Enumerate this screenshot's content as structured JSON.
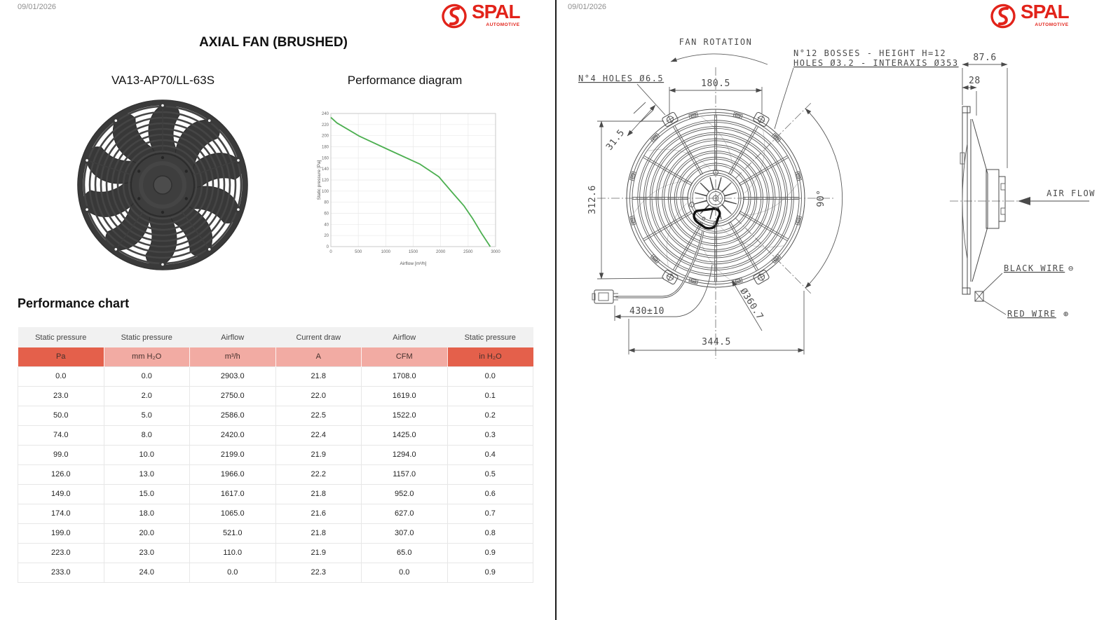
{
  "colors": {
    "accent_dark": "#e4604b",
    "accent_light": "#f2aba3",
    "brand_red": "#e2231a",
    "chart_line": "#4caf50"
  },
  "left_page": {
    "date": "09/01/2026",
    "logo": {
      "name": "SPAL",
      "tagline": "AUTOMOTIVE"
    },
    "title": "AXIAL FAN (BRUSHED)",
    "model": "VA13-AP70/LL-63S",
    "diagram_heading": "Performance diagram",
    "table_heading": "Performance chart",
    "table": {
      "headers": [
        "Static pressure",
        "Static pressure",
        "Airflow",
        "Current draw",
        "Airflow",
        "Static pressure"
      ],
      "units": [
        "Pa",
        "mm H₂O",
        "m³/h",
        "A",
        "CFM",
        "in H₂O"
      ],
      "unit_styles": [
        "dark",
        "light",
        "light",
        "light",
        "light",
        "dark"
      ],
      "rows": [
        [
          "0.0",
          "0.0",
          "2903.0",
          "21.8",
          "1708.0",
          "0.0"
        ],
        [
          "23.0",
          "2.0",
          "2750.0",
          "22.0",
          "1619.0",
          "0.1"
        ],
        [
          "50.0",
          "5.0",
          "2586.0",
          "22.5",
          "1522.0",
          "0.2"
        ],
        [
          "74.0",
          "8.0",
          "2420.0",
          "22.4",
          "1425.0",
          "0.3"
        ],
        [
          "99.0",
          "10.0",
          "2199.0",
          "21.9",
          "1294.0",
          "0.4"
        ],
        [
          "126.0",
          "13.0",
          "1966.0",
          "22.2",
          "1157.0",
          "0.5"
        ],
        [
          "149.0",
          "15.0",
          "1617.0",
          "21.8",
          "952.0",
          "0.6"
        ],
        [
          "174.0",
          "18.0",
          "1065.0",
          "21.6",
          "627.0",
          "0.7"
        ],
        [
          "199.0",
          "20.0",
          "521.0",
          "21.8",
          "307.0",
          "0.8"
        ],
        [
          "223.0",
          "23.0",
          "110.0",
          "21.9",
          "65.0",
          "0.9"
        ],
        [
          "233.0",
          "24.0",
          "0.0",
          "22.3",
          "0.0",
          "0.9"
        ]
      ]
    }
  },
  "chart_data": {
    "type": "line",
    "title": "Performance diagram",
    "xlabel": "Airflow [m³/h]",
    "ylabel": "Static pressure [Pa]",
    "xlim": [
      0,
      3000
    ],
    "ylim": [
      0,
      240
    ],
    "x_ticks": [
      0,
      500,
      1000,
      1500,
      2000,
      2500,
      3000
    ],
    "y_ticks": [
      0,
      20,
      40,
      60,
      80,
      100,
      120,
      140,
      160,
      180,
      200,
      220,
      240
    ],
    "grid": true,
    "legend": false,
    "series": [
      {
        "name": "Static pressure vs Airflow",
        "points": [
          [
            0,
            233
          ],
          [
            110,
            223
          ],
          [
            521,
            199
          ],
          [
            1065,
            174
          ],
          [
            1617,
            149
          ],
          [
            1966,
            126
          ],
          [
            2199,
            99
          ],
          [
            2420,
            74
          ],
          [
            2586,
            50
          ],
          [
            2750,
            23
          ],
          [
            2903,
            0
          ]
        ]
      }
    ]
  },
  "right_page": {
    "date": "09/01/2026",
    "logo": {
      "name": "SPAL",
      "tagline": "AUTOMOTIVE"
    },
    "drawing": {
      "fan_rotation": "FAN ROTATION",
      "holes_label": "N°4 HOLES Ø6.5",
      "bosses_line1": "N°12 BOSSES - HEIGHT H=12",
      "bosses_line2": "HOLES Ø3.2 - INTERAXIS Ø353",
      "dim_top_width": "180.5",
      "dim_left_height": "312.6",
      "dim_tab_offset": "31.5",
      "dim_angle": "90°",
      "dim_wire_length": "430±10",
      "dim_diameter": "Ø360.7",
      "dim_bottom_width": "344.5",
      "dim_depth": "87.6",
      "dim_flange": "28",
      "air_flow": "AIR FLOW",
      "black_wire": "BLACK WIRE",
      "polarity_negative": "⊖",
      "red_wire": "RED WIRE",
      "polarity_positive": "⊕"
    }
  }
}
